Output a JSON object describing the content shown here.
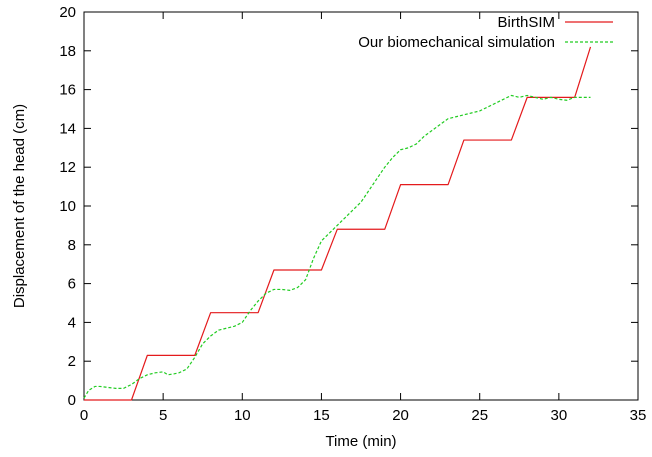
{
  "chart_data": {
    "type": "line",
    "title": "",
    "xlabel": "Time (min)",
    "ylabel": "Displacement of the head (cm)",
    "xlim": [
      0,
      35
    ],
    "ylim": [
      0,
      20
    ],
    "xticks": [
      "0",
      "5",
      "10",
      "15",
      "20",
      "25",
      "30",
      "35"
    ],
    "yticks": [
      "0",
      "2",
      "4",
      "6",
      "8",
      "10",
      "12",
      "14",
      "16",
      "18",
      "20"
    ],
    "grid": false,
    "legend": "top-right",
    "series": [
      {
        "name": "BirthSIM",
        "color": "#e41a1c",
        "dash": "solid",
        "points": [
          [
            0,
            0
          ],
          [
            3,
            0
          ],
          [
            4,
            2.3
          ],
          [
            7,
            2.3
          ],
          [
            8,
            4.5
          ],
          [
            11,
            4.5
          ],
          [
            12,
            6.7
          ],
          [
            15,
            6.7
          ],
          [
            16,
            8.8
          ],
          [
            19,
            8.8
          ],
          [
            20,
            11.1
          ],
          [
            23,
            11.1
          ],
          [
            24,
            13.4
          ],
          [
            27,
            13.4
          ],
          [
            28,
            15.6
          ],
          [
            31,
            15.6
          ],
          [
            32,
            18.2
          ]
        ]
      },
      {
        "name": "Our biomechanical simulation",
        "color": "#22cc22",
        "dash": "dashed",
        "points": [
          [
            0,
            0.1
          ],
          [
            0.3,
            0.5
          ],
          [
            0.7,
            0.7
          ],
          [
            1.0,
            0.7
          ],
          [
            1.5,
            0.65
          ],
          [
            2.0,
            0.6
          ],
          [
            2.5,
            0.6
          ],
          [
            3.0,
            0.8
          ],
          [
            3.5,
            1.1
          ],
          [
            4.0,
            1.3
          ],
          [
            4.5,
            1.4
          ],
          [
            5.0,
            1.45
          ],
          [
            5.3,
            1.3
          ],
          [
            5.7,
            1.35
          ],
          [
            6.0,
            1.4
          ],
          [
            6.5,
            1.6
          ],
          [
            7.0,
            2.2
          ],
          [
            7.5,
            2.9
          ],
          [
            8.0,
            3.3
          ],
          [
            8.5,
            3.6
          ],
          [
            9.0,
            3.7
          ],
          [
            9.5,
            3.8
          ],
          [
            10.0,
            4.0
          ],
          [
            10.5,
            4.6
          ],
          [
            11.0,
            5.1
          ],
          [
            11.5,
            5.5
          ],
          [
            12.0,
            5.7
          ],
          [
            12.5,
            5.7
          ],
          [
            13.0,
            5.65
          ],
          [
            13.5,
            5.8
          ],
          [
            14.0,
            6.2
          ],
          [
            14.5,
            7.3
          ],
          [
            15.0,
            8.2
          ],
          [
            15.5,
            8.6
          ],
          [
            16.0,
            9.0
          ],
          [
            16.5,
            9.4
          ],
          [
            17.0,
            9.8
          ],
          [
            17.5,
            10.2
          ],
          [
            18.0,
            10.8
          ],
          [
            18.5,
            11.4
          ],
          [
            19.0,
            12.0
          ],
          [
            19.5,
            12.5
          ],
          [
            20.0,
            12.9
          ],
          [
            20.5,
            13.0
          ],
          [
            21.0,
            13.2
          ],
          [
            21.5,
            13.6
          ],
          [
            22.0,
            13.9
          ],
          [
            22.5,
            14.2
          ],
          [
            23.0,
            14.5
          ],
          [
            23.5,
            14.6
          ],
          [
            24.0,
            14.7
          ],
          [
            24.5,
            14.8
          ],
          [
            25.0,
            14.9
          ],
          [
            25.5,
            15.1
          ],
          [
            26.0,
            15.3
          ],
          [
            26.5,
            15.5
          ],
          [
            27.0,
            15.7
          ],
          [
            27.5,
            15.6
          ],
          [
            28.0,
            15.7
          ],
          [
            28.5,
            15.6
          ],
          [
            29.0,
            15.5
          ],
          [
            29.5,
            15.6
          ],
          [
            30.0,
            15.5
          ],
          [
            30.5,
            15.45
          ],
          [
            31.0,
            15.6
          ],
          [
            31.5,
            15.6
          ],
          [
            32.0,
            15.6
          ]
        ]
      }
    ]
  }
}
